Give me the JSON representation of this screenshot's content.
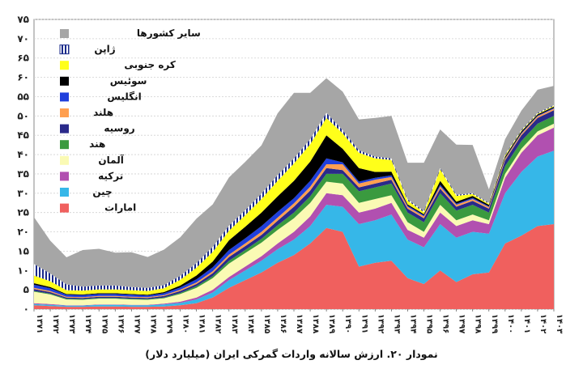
{
  "caption": "نمودار ۲۰. ارزش سالانه واردات گمرکی ایران (میلیارد دلار)",
  "chart_data": {
    "type": "area",
    "stacked": true,
    "x": [
      "۱۳۷۱",
      "۱۳۷۲",
      "۱۳۷۳",
      "۱۳۷۴",
      "۱۳۷۵",
      "۱۳۷۶",
      "۱۳۷۷",
      "۱۳۷۸",
      "۱۳۷۹",
      "۱۳۸۰",
      "۱۳۸۱",
      "۱۳۸۲",
      "۱۳۸۳",
      "۱۳۸۴",
      "۱۳۸۵",
      "۱۳۸۶",
      "۱۳۸۷",
      "۱۳۸۸",
      "۱۳۸۹",
      "۱۳۹۰",
      "۱۳۹۱",
      "۱۳۹۲",
      "۱۳۹۳",
      "۱۳۹۴",
      "۱۳۹۵",
      "۱۳۹۶",
      "۱۳۹۷",
      "۱۳۹۸",
      "۱۳۹۹",
      "۱۴۰۰",
      "۱۴۰۱",
      "۱۴۰۲",
      "۱۴۰۳"
    ],
    "ylim": [
      0,
      75
    ],
    "yticks": [
      "۰",
      "۵",
      "۱۰",
      "۱۵",
      "۲۰",
      "۲۵",
      "۳۰",
      "۳۵",
      "۴۰",
      "۴۵",
      "۵۰",
      "۵۵",
      "۶۰",
      "۶۵",
      "۷۰",
      "۷۵"
    ],
    "grid": true,
    "legend_position": "top-left",
    "series": [
      {
        "name": "امارات",
        "color": "#f0605e",
        "values": [
          1,
          0.8,
          0.6,
          0.6,
          0.7,
          0.7,
          0.6,
          0.6,
          0.7,
          1,
          1.5,
          3,
          5.5,
          7.5,
          9.5,
          12,
          14,
          17,
          21,
          20,
          11,
          12,
          12.5,
          8,
          6.5,
          10,
          7,
          9,
          9.5,
          17,
          19,
          21.5,
          22
        ]
      },
      {
        "name": "چین",
        "color": "#36b7e8",
        "values": [
          0.3,
          0.3,
          0.3,
          0.3,
          0.4,
          0.4,
          0.4,
          0.4,
          0.5,
          0.6,
          1,
          1.3,
          2,
          2.5,
          3,
          3.5,
          4,
          4.5,
          6,
          6.5,
          11,
          11,
          12,
          10,
          9.5,
          12,
          11.5,
          11,
          10,
          13,
          16.5,
          18,
          19
        ]
      },
      {
        "name": "ترکیه",
        "color": "#b150b0",
        "values": [
          0.2,
          0.2,
          0.1,
          0.1,
          0.1,
          0.1,
          0.1,
          0.1,
          0.2,
          0.3,
          0.5,
          0.7,
          0.8,
          1,
          1.2,
          1.5,
          2,
          2.5,
          3,
          3,
          3,
          3,
          3,
          2.5,
          2.5,
          3,
          3,
          3,
          2.5,
          4,
          5,
          5.5,
          6
        ]
      },
      {
        "name": "آلمان",
        "color": "#fafab4",
        "values": [
          3,
          2.5,
          1.5,
          1.4,
          1.5,
          1.5,
          1.4,
          1.3,
          1.4,
          2,
          2.5,
          3,
          3.5,
          3.5,
          3.5,
          3.5,
          3.5,
          3.5,
          3,
          3,
          2.5,
          2.5,
          2,
          2,
          1.5,
          2,
          1.5,
          1.5,
          1,
          1,
          1,
          1,
          1
        ]
      },
      {
        "name": "هند",
        "color": "#3a9a3f",
        "values": [
          0.2,
          0.2,
          0.2,
          0.2,
          0.2,
          0.2,
          0.2,
          0.2,
          0.2,
          0.3,
          0.4,
          0.5,
          0.7,
          0.8,
          1,
          1.2,
          1.5,
          1.7,
          2,
          2.5,
          3,
          3,
          3,
          2.5,
          2.5,
          3,
          2.5,
          2.5,
          2,
          2,
          2,
          2,
          2
        ]
      },
      {
        "name": "روسیه",
        "color": "#2a2a8a",
        "values": [
          0.5,
          0.4,
          0.3,
          0.3,
          0.3,
          0.3,
          0.3,
          0.3,
          0.4,
          0.5,
          0.6,
          0.8,
          1,
          1,
          1,
          1.2,
          1.5,
          1.5,
          1.5,
          1,
          1,
          1,
          1,
          1,
          1,
          1.2,
          1,
          1,
          1,
          1.5,
          1.5,
          1.5,
          1.5
        ]
      },
      {
        "name": "هلند",
        "color": "#ff9f50",
        "values": [
          0.3,
          0.3,
          0.2,
          0.2,
          0.2,
          0.2,
          0.2,
          0.2,
          0.2,
          0.3,
          0.4,
          0.5,
          0.6,
          0.7,
          0.8,
          0.8,
          0.9,
          1,
          1,
          1.5,
          1,
          1,
          0.7,
          0.5,
          0.5,
          0.6,
          0.5,
          0.5,
          0.4,
          0.4,
          0.4,
          0.4,
          0.4
        ]
      },
      {
        "name": "انگلیس",
        "color": "#1f3fdc",
        "values": [
          0.8,
          0.7,
          0.5,
          0.5,
          0.5,
          0.5,
          0.5,
          0.4,
          0.5,
          0.6,
          0.8,
          1,
          1.2,
          1.3,
          1.5,
          1.5,
          1.3,
          1.5,
          1.5,
          0.5,
          0.5,
          0.5,
          0.4,
          0.3,
          0.3,
          0.4,
          0.3,
          0.3,
          0.2,
          0.2,
          0.2,
          0.2,
          0.2
        ]
      },
      {
        "name": "سوئیس",
        "color": "#000000",
        "values": [
          0.4,
          0.3,
          0.2,
          0.2,
          0.2,
          0.2,
          0.2,
          0.2,
          0.3,
          0.5,
          1,
          1.5,
          2.5,
          3,
          3.5,
          4,
          4.5,
          5,
          6,
          3.5,
          3.5,
          1.5,
          1,
          0.3,
          0.3,
          1,
          0.5,
          0.5,
          0.4,
          0.4,
          0.4,
          0.3,
          0.3
        ]
      },
      {
        "name": "کره جنوبی",
        "color": "#ffff1a",
        "values": [
          2,
          1.5,
          1,
          1,
          1,
          1,
          1,
          1,
          1,
          1.5,
          2,
          2.5,
          2.5,
          3,
          3.5,
          4,
          4.5,
          4.5,
          4.5,
          4,
          4,
          3.5,
          3,
          1,
          0.5,
          3,
          1.5,
          0.5,
          0.3,
          0.3,
          0.2,
          0.2,
          0.2
        ]
      },
      {
        "name": "ژاپن",
        "color": "#1a2a8a",
        "values": [
          3,
          2,
          1.5,
          1,
          1,
          1,
          0.8,
          0.8,
          0.8,
          1,
          1.2,
          1.3,
          1.3,
          1.3,
          1.4,
          1.5,
          1.3,
          1.3,
          1.3,
          0.8,
          0.6,
          0.5,
          0.4,
          0.3,
          0.3,
          0.3,
          0.3,
          0.2,
          0.2,
          0.2,
          0.2,
          0.2,
          0.2
        ]
      },
      {
        "name": "سایر کشورها",
        "color": "#a6a6a6",
        "values": [
          12.1,
          8.5,
          7,
          9.5,
          9.5,
          8.5,
          9,
          8,
          9.2,
          10,
          11.5,
          11,
          12.5,
          12.5,
          12.5,
          16,
          17,
          12,
          9,
          10,
          8,
          10,
          11,
          9.5,
          12.5,
          10,
          13,
          12.5,
          3.5,
          4,
          5,
          6,
          5
        ]
      }
    ]
  }
}
